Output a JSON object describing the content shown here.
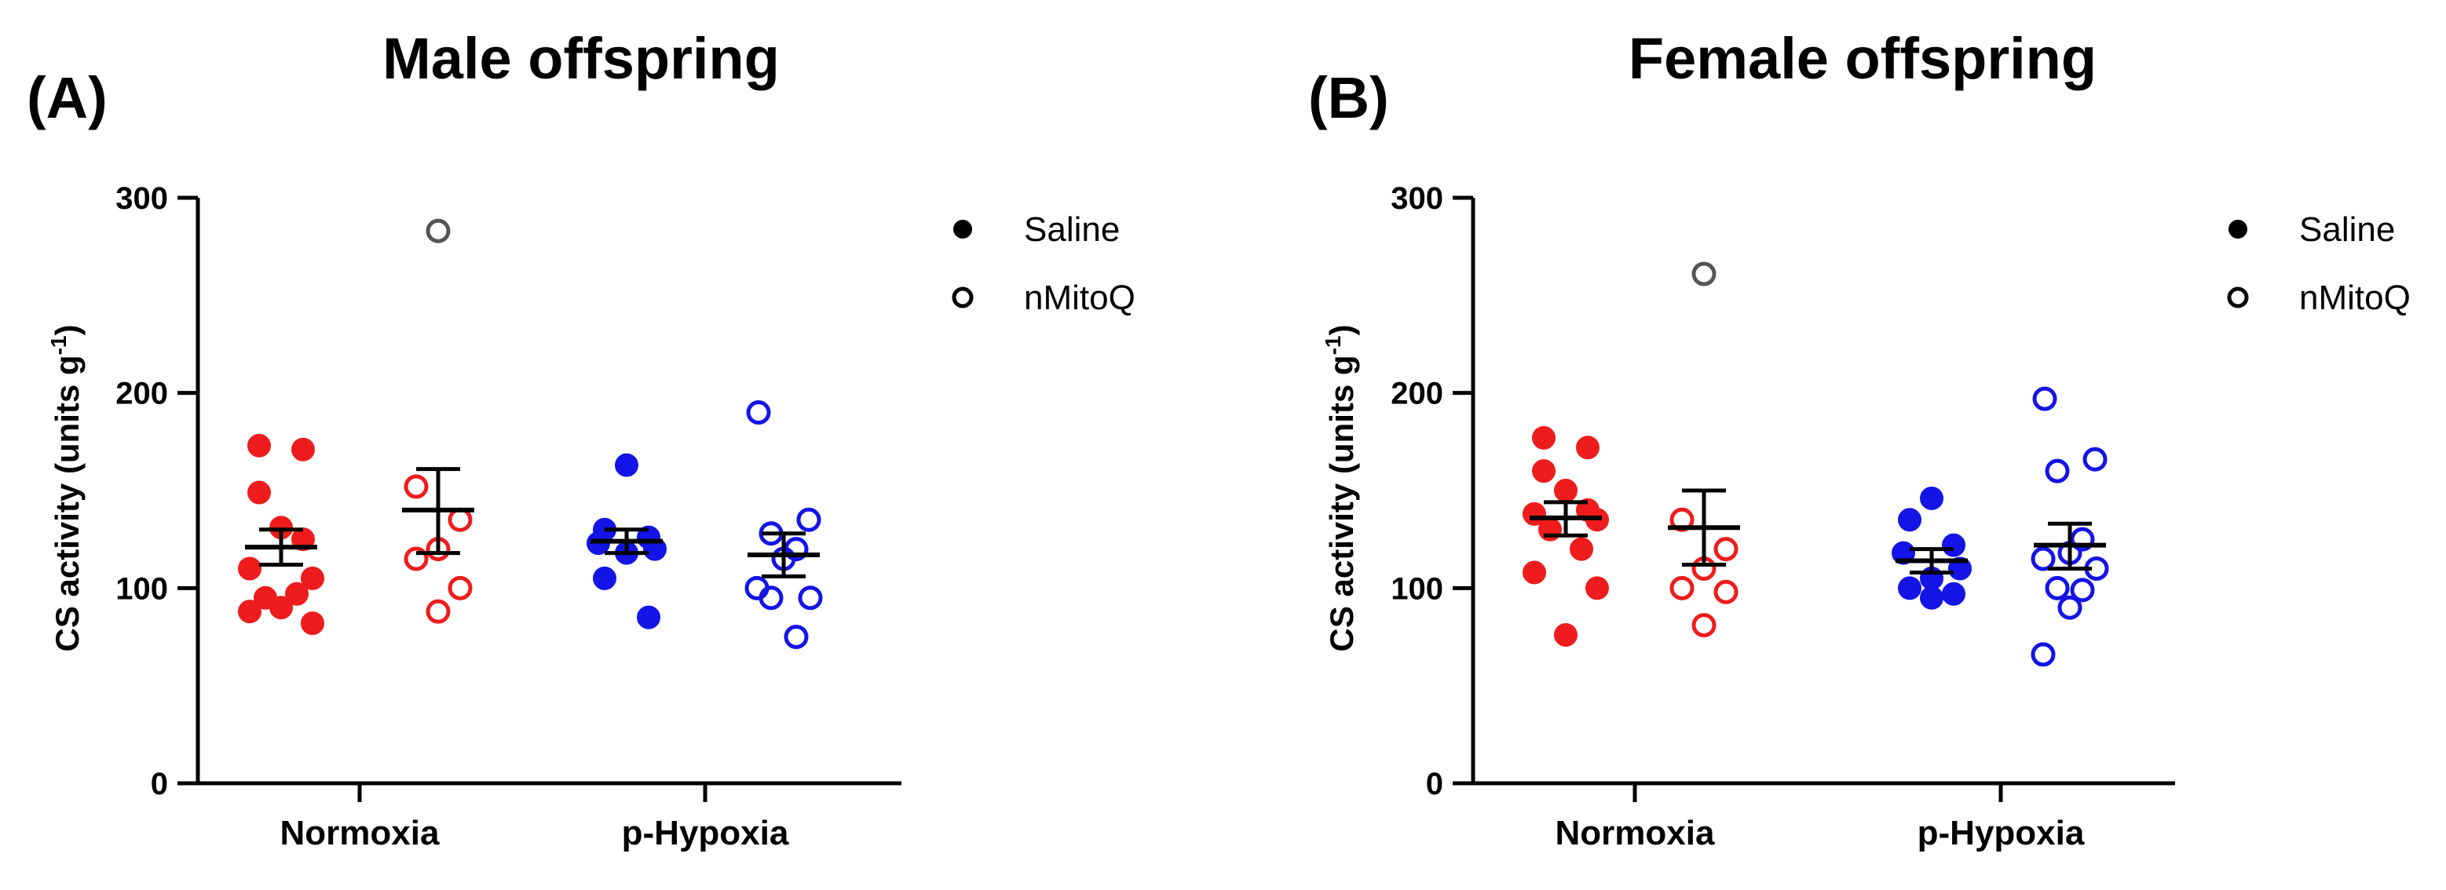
{
  "chart_data": [
    {
      "type": "scatter",
      "panel_label": "(A)",
      "title": "Male offspring",
      "ylabel": "CS activity (units g",
      "ylabel_sup": "-1",
      "ylabel_close": ")",
      "ylim": [
        0,
        300
      ],
      "yticks": [
        0,
        100,
        200,
        300
      ],
      "categories": [
        "Normoxia",
        "p-Hypoxia"
      ],
      "legend": [
        {
          "name": "Saline",
          "style": "filled"
        },
        {
          "name": "nMitoQ",
          "style": "open"
        }
      ],
      "groups": [
        {
          "category": "Normoxia",
          "treatment": "Saline",
          "style": "filled",
          "color": "#ee1c1c",
          "values": [
            173,
            171,
            149,
            131,
            125,
            110,
            105,
            95,
            97,
            88,
            82,
            90
          ],
          "mean": 121,
          "sem_low": 112,
          "sem_high": 130
        },
        {
          "category": "Normoxia",
          "treatment": "nMitoQ",
          "style": "open",
          "color": "#ee1c1c",
          "outlier_color": "#555555",
          "values": [
            283,
            152,
            135,
            120,
            115,
            100,
            88
          ],
          "mean": 140,
          "sem_low": 118,
          "sem_high": 161
        },
        {
          "category": "p-Hypoxia",
          "treatment": "Saline",
          "style": "filled",
          "color": "#1414e6",
          "values": [
            163,
            130,
            126,
            123,
            120,
            118,
            105,
            85
          ],
          "mean": 124,
          "sem_low": 118,
          "sem_high": 130
        },
        {
          "category": "p-Hypoxia",
          "treatment": "nMitoQ",
          "style": "open",
          "color": "#1414e6",
          "values": [
            190,
            135,
            128,
            120,
            115,
            100,
            95,
            95,
            75
          ],
          "mean": 117,
          "sem_low": 106,
          "sem_high": 128
        }
      ]
    },
    {
      "type": "scatter",
      "panel_label": "(B)",
      "title": "Female offspring",
      "ylabel": "CS activity (units g",
      "ylabel_sup": "-1",
      "ylabel_close": ")",
      "ylim": [
        0,
        300
      ],
      "yticks": [
        0,
        100,
        200,
        300
      ],
      "categories": [
        "Normoxia",
        "p-Hypoxia"
      ],
      "legend": [
        {
          "name": "Saline",
          "style": "filled"
        },
        {
          "name": "nMitoQ",
          "style": "open"
        }
      ],
      "groups": [
        {
          "category": "Normoxia",
          "treatment": "Saline",
          "style": "filled",
          "color": "#ee1c1c",
          "values": [
            177,
            172,
            160,
            150,
            140,
            138,
            135,
            130,
            120,
            108,
            100,
            76
          ],
          "mean": 136,
          "sem_low": 127,
          "sem_high": 144
        },
        {
          "category": "Normoxia",
          "treatment": "nMitoQ",
          "style": "open",
          "color": "#ee1c1c",
          "outlier_color": "#555555",
          "values": [
            261,
            135,
            120,
            110,
            100,
            98,
            81
          ],
          "mean": 131,
          "sem_low": 112,
          "sem_high": 150
        },
        {
          "category": "p-Hypoxia",
          "treatment": "Saline",
          "style": "filled",
          "color": "#1414e6",
          "values": [
            146,
            135,
            122,
            118,
            110,
            105,
            100,
            97,
            95
          ],
          "mean": 114,
          "sem_low": 108,
          "sem_high": 120
        },
        {
          "category": "p-Hypoxia",
          "treatment": "nMitoQ",
          "style": "open",
          "color": "#1414e6",
          "values": [
            197,
            166,
            160,
            125,
            118,
            115,
            110,
            100,
            99,
            90,
            66
          ],
          "mean": 122,
          "sem_low": 110,
          "sem_high": 133
        }
      ]
    }
  ]
}
